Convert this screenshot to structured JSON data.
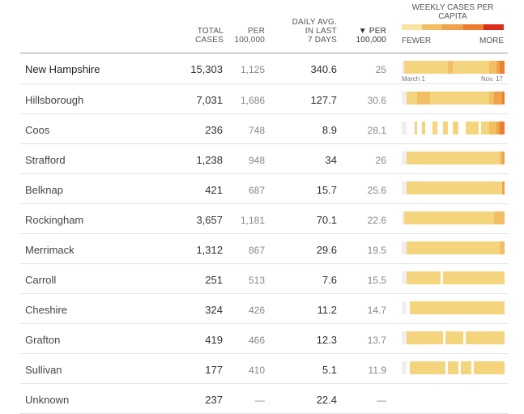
{
  "header": {
    "total_line1": "TOTAL",
    "total_line2": "CASES",
    "per_line1": "PER",
    "per_line2": "100,000",
    "daily_line1": "DAILY AVG.",
    "daily_line2": "IN LAST",
    "daily_line3": "7 DAYS",
    "sort_line1": "▼ PER",
    "sort_line2": "100,000",
    "legend_title": "WEEKLY CASES PER CAPITA",
    "legend_fewer": "FEWER",
    "legend_more": "MORE",
    "date_start": "March 1",
    "date_end": "Nov. 17"
  },
  "colors": {
    "none": "#efefef",
    "c1": "#f8e3a2",
    "c2": "#f5d47e",
    "c3": "#f2be63",
    "c4": "#f0a24b",
    "c5": "#ee7d2e",
    "c6": "#d92e1c"
  },
  "legend_levels": [
    "c1",
    "c3",
    "c4",
    "c5",
    "c6"
  ],
  "rows": [
    {
      "name": "New Hampshire",
      "total": "15,303",
      "per100k": "1,125",
      "daily": "340.6",
      "daily_per100k": "25",
      "spark": "0222222222222222223322222222222222333455"
    },
    {
      "name": "Hillsborough",
      "total": "7,031",
      "per100k": "1,686",
      "daily": "127.7",
      "daily_per100k": "30.6",
      "spark": "0022223333322222222222222222222222334445"
    },
    {
      "name": "Coos",
      "total": "236",
      "per100k": "748",
      "daily": "8.9",
      "daily_per100k": "28.1",
      "spark": "0000020020002200220022000222220222333455"
    },
    {
      "name": "Strafford",
      "total": "1,238",
      "per100k": "948",
      "daily": "34",
      "daily_per100k": "26",
      "spark": "0022222222222222222222222222222222222234"
    },
    {
      "name": "Belknap",
      "total": "421",
      "per100k": "687",
      "daily": "15.7",
      "daily_per100k": "25.6",
      "spark": "0022222222222222222222222222222222222224"
    },
    {
      "name": "Rockingham",
      "total": "3,657",
      "per100k": "1,181",
      "daily": "70.1",
      "daily_per100k": "22.6",
      "spark": "0222222222222222222222222222222222223333"
    },
    {
      "name": "Merrimack",
      "total": "1,312",
      "per100k": "867",
      "daily": "29.6",
      "daily_per100k": "19.5",
      "spark": "0022222222222222222222222222222222222233"
    },
    {
      "name": "Carroll",
      "total": "251",
      "per100k": "513",
      "daily": "7.6",
      "daily_per100k": "15.5",
      "spark": "0022222222222220222222222222222222222222"
    },
    {
      "name": "Cheshire",
      "total": "324",
      "per100k": "426",
      "daily": "11.2",
      "daily_per100k": "14.7",
      "spark": "0002222222222222222222222222222222222222"
    },
    {
      "name": "Grafton",
      "total": "419",
      "per100k": "466",
      "daily": "12.3",
      "daily_per100k": "13.7",
      "spark": "0022222222222222022222220222222222222222"
    },
    {
      "name": "Sullivan",
      "total": "177",
      "per100k": "410",
      "daily": "5.1",
      "daily_per100k": "11.9",
      "spark": "0002222222222222202222022220222222222222"
    },
    {
      "name": "Unknown",
      "total": "237",
      "per100k": "—",
      "daily": "22.4",
      "daily_per100k": "—",
      "spark": ""
    }
  ]
}
